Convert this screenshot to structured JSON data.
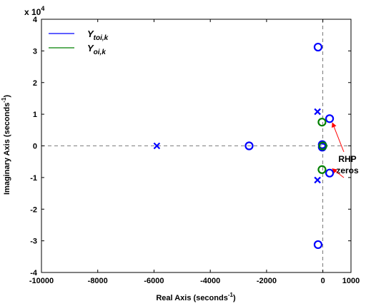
{
  "chart_data": {
    "type": "scatter",
    "title": "",
    "xlabel": "Real Axis (seconds",
    "xlabel_exp": "-1",
    "xlabel_close": ")",
    "ylabel": "Imaginary Axis (seconds",
    "ylabel_exp": "-1",
    "ylabel_close": ")",
    "xlim": [
      -10000,
      1000
    ],
    "ylim": [
      -40000,
      40000
    ],
    "xticks": [
      -10000,
      -8000,
      -6000,
      -4000,
      -2000,
      0,
      1000
    ],
    "xtick_labels": [
      "-10000",
      "-8000",
      "-6000",
      "-4000",
      "-2000",
      "0",
      "1000"
    ],
    "yticks": [
      -40000,
      -30000,
      -20000,
      -10000,
      0,
      10000,
      20000,
      30000,
      40000
    ],
    "ytick_labels": [
      "-4",
      "-3",
      "-2",
      "-1",
      "0",
      "1",
      "2",
      "3",
      "4"
    ],
    "y_multiplier_base": "x 10",
    "y_multiplier_exp": "4",
    "grid": false,
    "legend_position": "top-left",
    "legend": [
      {
        "label_main": "Y",
        "label_sub": "toi,k",
        "color": "#0000ff"
      },
      {
        "label_main": "Y",
        "label_sub": "oi,k",
        "color": "#008000"
      }
    ],
    "series": [
      {
        "name": "Y toi,k poles",
        "color": "#0000ff",
        "marker": "x",
        "points": [
          [
            -5900,
            0
          ],
          [
            -190,
            10800
          ],
          [
            -190,
            -10800
          ]
        ]
      },
      {
        "name": "Y toi,k zeros",
        "color": "#0000ff",
        "marker": "o",
        "points": [
          [
            -2620,
            0
          ],
          [
            -170,
            31200
          ],
          [
            -170,
            -31200
          ],
          [
            240,
            8600
          ],
          [
            240,
            -8600
          ],
          [
            -20,
            400
          ],
          [
            -20,
            -400
          ],
          [
            0,
            0
          ]
        ]
      },
      {
        "name": "Y oi,k zeros",
        "color": "#008000",
        "marker": "o",
        "points": [
          [
            -30,
            7500
          ],
          [
            -30,
            -7500
          ],
          [
            0,
            0
          ]
        ]
      }
    ],
    "annotation": {
      "line1": "RHP",
      "line2": "zeros",
      "color": "#ff0000",
      "targets": [
        [
          240,
          8600
        ],
        [
          240,
          -8600
        ]
      ]
    }
  }
}
